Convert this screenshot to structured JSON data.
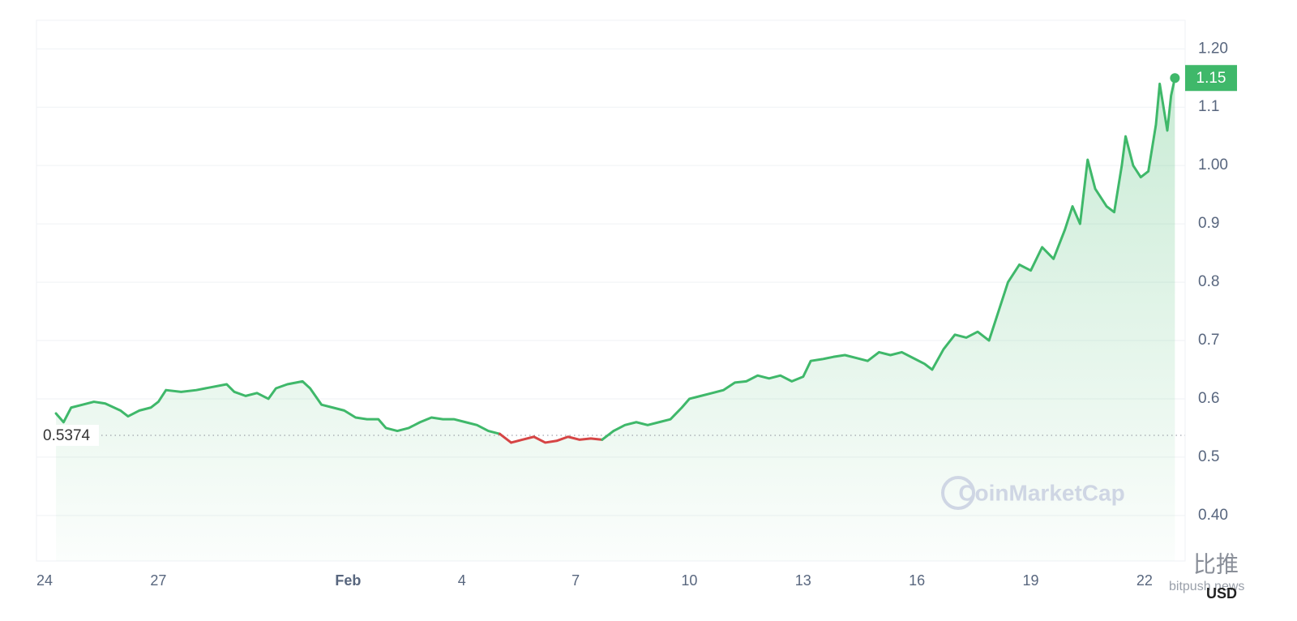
{
  "chart_data": {
    "type": "line",
    "x": [
      0.3,
      0.5,
      0.7,
      1.0,
      1.3,
      1.6,
      2.0,
      2.2,
      2.5,
      2.8,
      3.0,
      3.2,
      3.6,
      4.0,
      4.4,
      4.8,
      5.0,
      5.3,
      5.6,
      5.9,
      6.1,
      6.4,
      6.8,
      7.0,
      7.3,
      7.6,
      7.9,
      8.2,
      8.5,
      8.8,
      9.0,
      9.3,
      9.6,
      9.9,
      10.2,
      10.5,
      10.8,
      11.1,
      11.4,
      11.7,
      12.0,
      12.3,
      12.6,
      12.9,
      13.2,
      13.5,
      13.8,
      14.1,
      14.4,
      14.7,
      15.0,
      15.3,
      15.6,
      15.9,
      16.2,
      16.5,
      16.8,
      17.0,
      17.3,
      17.6,
      17.9,
      18.2,
      18.5,
      18.8,
      19.1,
      19.4,
      19.7,
      20.0,
      20.2,
      20.5,
      20.8,
      21.1,
      21.4,
      21.7,
      22.0,
      22.3,
      22.6,
      22.9,
      23.2,
      23.4,
      23.7,
      24.0,
      24.3,
      24.6,
      24.9,
      25.1,
      25.4,
      25.7,
      26.0,
      26.3,
      26.6,
      26.9,
      27.1,
      27.3,
      27.5,
      27.7,
      28.0,
      28.2,
      28.4,
      28.5,
      28.7,
      28.9,
      29.1,
      29.3,
      29.4,
      29.6,
      29.7,
      29.8
    ],
    "series": [
      {
        "values": [
          0.575,
          0.56,
          0.585,
          0.59,
          0.595,
          0.592,
          0.58,
          0.57,
          0.58,
          0.585,
          0.595,
          0.615,
          0.612,
          0.615,
          0.62,
          0.625,
          0.612,
          0.605,
          0.61,
          0.6,
          0.618,
          0.625,
          0.63,
          0.618,
          0.59,
          0.585,
          0.58,
          0.568,
          0.565,
          0.565,
          0.55,
          0.545,
          0.55,
          0.56,
          0.568,
          0.565,
          0.565,
          0.56,
          0.555,
          0.545,
          0.54,
          0.525,
          0.53,
          0.535,
          0.525,
          0.528,
          0.535,
          0.53,
          0.532,
          0.53,
          0.545,
          0.555,
          0.56,
          0.555,
          0.56,
          0.565,
          0.585,
          0.6,
          0.605,
          0.61,
          0.615,
          0.628,
          0.63,
          0.64,
          0.635,
          0.64,
          0.63,
          0.638,
          0.665,
          0.668,
          0.672,
          0.675,
          0.67,
          0.665,
          0.68,
          0.675,
          0.68,
          0.67,
          0.66,
          0.65,
          0.685,
          0.71,
          0.705,
          0.715,
          0.7,
          0.74,
          0.8,
          0.83,
          0.82,
          0.86,
          0.84,
          0.89,
          0.93,
          0.9,
          1.01,
          0.96,
          0.93,
          0.92,
          1.0,
          1.05,
          1.0,
          0.98,
          0.99,
          1.07,
          1.14,
          1.06,
          1.12,
          1.15
        ],
        "color": "#3fb86a",
        "below_color": "#d64545"
      }
    ],
    "baseline": 0.5374,
    "last_price": 1.15,
    "xlim": [
      -0.214,
      30.07
    ],
    "xticks": [
      {
        "value": 0,
        "label": "24"
      },
      {
        "value": 3,
        "label": "27"
      },
      {
        "value": 8,
        "label": "Feb"
      },
      {
        "value": 11,
        "label": "4"
      },
      {
        "value": 14,
        "label": "7"
      },
      {
        "value": 17,
        "label": "10"
      },
      {
        "value": 20,
        "label": "13"
      },
      {
        "value": 23,
        "label": "16"
      },
      {
        "value": 26,
        "label": "19"
      },
      {
        "value": 29,
        "label": "22"
      }
    ],
    "ylim": [
      0.322,
      1.249
    ],
    "yticks": [
      {
        "value": 0.4,
        "label": "0.40"
      },
      0.5,
      0.6,
      0.7,
      0.8,
      0.9,
      {
        "value": 1.0,
        "label": "1.00"
      },
      1.1,
      {
        "value": 1.2,
        "label": "1.20"
      }
    ],
    "grid": true,
    "currency": "USD",
    "watermark": "CoinMarketCap",
    "overlay_title": "比推",
    "overlay_subtitle": "bitpush news"
  }
}
